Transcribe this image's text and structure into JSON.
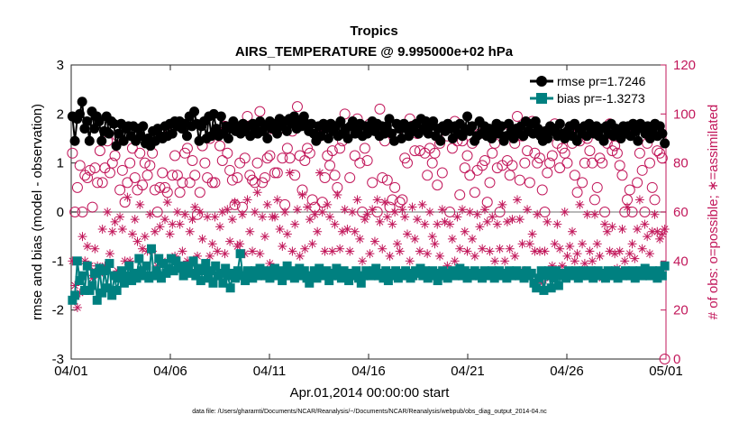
{
  "chart_data": {
    "type": "scatter",
    "title": "Tropics",
    "subtitle": "AIRS_TEMPERATURE @ 9.995000e+02 hPa",
    "xlabel": "Apr.01,2014 00:00:00 start",
    "ylabel_left": "rmse and bias (model - observation)",
    "ylabel_right": "# of obs: o=possible; ∗=assimilated",
    "footnote": "data file: /Users/gharamti/Documents/NCAR/Reanalysis/~/Documents/NCAR/Reanalysis/webpub/obs_diag_output_2014-04.nc",
    "x_ticks": [
      "04/01",
      "04/06",
      "04/11",
      "04/16",
      "04/21",
      "04/26",
      "05/01"
    ],
    "xlim_days": [
      0,
      30
    ],
    "ylim_left": [
      -3,
      3
    ],
    "yticks_left": [
      "3",
      "2",
      "1",
      "0",
      "-1",
      "-2",
      "-3"
    ],
    "ylim_right": [
      0,
      120
    ],
    "yticks_right": [
      "120",
      "100",
      "80",
      "60",
      "40",
      "20",
      "0"
    ],
    "legend": {
      "rmse": "rmse pr=1.7246",
      "bias": "bias pr=-1.3273"
    },
    "colors": {
      "rmse": "#000000",
      "bias": "#008080",
      "counts": "#c2185b",
      "zero_line": "#a0a0a0"
    },
    "series": [
      {
        "name": "rmse",
        "axis": "left",
        "values": [
          1.95,
          1.45,
          1.9,
          2.0,
          2.25,
          1.7,
          1.85,
          1.45,
          2.05,
          1.7,
          1.95,
          1.85,
          1.45,
          1.65,
          1.95,
          1.6,
          1.85,
          1.8,
          1.35,
          1.6,
          1.8,
          1.45,
          1.7,
          1.75,
          1.55,
          1.75,
          1.45,
          1.7,
          1.55,
          1.75,
          1.4,
          1.5,
          1.35,
          1.65,
          1.45,
          1.7,
          1.55,
          1.5,
          1.75,
          1.55,
          1.8,
          1.6,
          1.85,
          1.75,
          1.85,
          1.7,
          1.8,
          1.55,
          1.95,
          1.75,
          2.05,
          1.8,
          1.45,
          1.75,
          1.85,
          1.5,
          1.95,
          1.55,
          2.0,
          1.7,
          1.55,
          1.95,
          1.6,
          1.75,
          1.5,
          1.7,
          1.85,
          1.65,
          1.75,
          1.6,
          1.8,
          1.65,
          1.75,
          1.55,
          1.8,
          1.7,
          1.6,
          1.85,
          1.65,
          1.75,
          1.5,
          1.85,
          1.7,
          1.8,
          1.6,
          1.9,
          1.75,
          1.85,
          1.65,
          1.9,
          1.8,
          1.95,
          1.7,
          1.85,
          1.75,
          1.95,
          1.8,
          1.65,
          1.8,
          1.6,
          1.45,
          1.75,
          1.55,
          1.8,
          1.7,
          1.5,
          1.8,
          1.65,
          1.75,
          1.55,
          1.85,
          1.6,
          1.7,
          1.5,
          1.75,
          1.85,
          1.6,
          1.7,
          1.8,
          1.55,
          1.75,
          1.6,
          1.7,
          1.85,
          1.65,
          1.8,
          1.55,
          1.75,
          1.6,
          1.75,
          1.9,
          1.6,
          1.45,
          1.8,
          1.7,
          1.5,
          1.8,
          1.7,
          1.55,
          1.75,
          1.65,
          1.8,
          1.6,
          1.9,
          1.7,
          1.85,
          1.6,
          1.75,
          1.85,
          1.55,
          1.7,
          1.45,
          1.75,
          1.65,
          1.8,
          1.7,
          1.5,
          1.75,
          1.6,
          1.8,
          1.55,
          1.7,
          1.95,
          1.65,
          1.75,
          1.45,
          1.55,
          1.85,
          1.6,
          1.75,
          1.55,
          1.7,
          1.5,
          1.65,
          1.8,
          1.6,
          1.75,
          1.45,
          1.55,
          1.8,
          1.65,
          1.5,
          1.7,
          1.6,
          1.75,
          1.55,
          1.85,
          1.65,
          1.8,
          1.6,
          1.85,
          1.7,
          1.55,
          1.45,
          1.65,
          1.5,
          1.75,
          1.65,
          1.7,
          1.55,
          1.8,
          1.6,
          1.5,
          1.65,
          1.75,
          1.55,
          1.8,
          1.45,
          1.7,
          1.6,
          1.75,
          1.55,
          1.8,
          1.65,
          1.6,
          1.75,
          1.55,
          1.7,
          1.45,
          1.75,
          1.6,
          1.8,
          1.55,
          1.7,
          1.65,
          1.5,
          1.75,
          1.6,
          1.75,
          1.55,
          1.8,
          1.65,
          1.45,
          1.8,
          1.7,
          1.6,
          1.75,
          1.5,
          1.65,
          1.8,
          1.55,
          1.75,
          1.6,
          1.4
        ]
      },
      {
        "name": "bias",
        "axis": "left",
        "values": [
          -1.8,
          -1.7,
          -1.0,
          -1.4,
          -1.3,
          -1.6,
          -1.1,
          -1.6,
          -1.5,
          -1.25,
          -1.8,
          -1.15,
          -1.65,
          -1.2,
          -1.55,
          -1.05,
          -1.7,
          -1.3,
          -1.6,
          -1.35,
          -1.2,
          -1.45,
          -1.3,
          -1.1,
          -1.4,
          -1.25,
          -1.35,
          -0.95,
          -1.2,
          -1.3,
          -1.1,
          -1.35,
          -0.75,
          -1.3,
          -1.2,
          -0.95,
          -1.35,
          -1.05,
          -1.25,
          -1.15,
          -0.95,
          -1.2,
          -1.0,
          -1.15,
          -1.1,
          -1.3,
          -1.2,
          -1.1,
          -1.25,
          -1.0,
          -1.3,
          -1.15,
          -1.4,
          -1.2,
          -1.05,
          -1.35,
          -1.2,
          -1.45,
          -1.1,
          -1.3,
          -1.25,
          -1.45,
          -1.15,
          -1.3,
          -1.55,
          -1.25,
          -1.35,
          -1.2,
          -0.85,
          -1.3,
          -1.4,
          -1.2,
          -1.25,
          -1.35,
          -1.2,
          -1.3,
          -1.15,
          -1.25,
          -1.3,
          -1.2,
          -1.35,
          -1.25,
          -1.15,
          -1.3,
          -1.2,
          -1.4,
          -1.25,
          -1.1,
          -1.3,
          -1.2,
          -1.35,
          -1.25,
          -1.15,
          -1.3,
          -1.2,
          -1.35,
          -1.45,
          -1.3,
          -1.2,
          -1.35,
          -1.15,
          -1.3,
          -1.25,
          -1.2,
          -1.4,
          -1.3,
          -1.25,
          -1.15,
          -1.3,
          -1.35,
          -1.2,
          -1.25,
          -1.4,
          -1.3,
          -1.25,
          -1.2,
          -1.35,
          -1.45,
          -1.3,
          -1.2,
          -1.25,
          -1.3,
          -1.2,
          -1.15,
          -1.3,
          -1.25,
          -1.35,
          -1.2,
          -1.4,
          -1.3,
          -1.25,
          -1.2,
          -1.35,
          -1.25,
          -1.3,
          -1.2,
          -1.25,
          -1.35,
          -1.3,
          -1.2,
          -1.25,
          -1.15,
          -1.3,
          -1.2,
          -1.35,
          -1.25,
          -1.2,
          -1.3,
          -1.4,
          -1.25,
          -1.2,
          -1.3,
          -1.35,
          -1.25,
          -1.2,
          -1.3,
          -1.25,
          -1.15,
          -1.3,
          -1.2,
          -1.35,
          -1.25,
          -1.3,
          -1.2,
          -1.25,
          -1.3,
          -1.35,
          -1.2,
          -1.25,
          -1.3,
          -1.2,
          -1.35,
          -1.25,
          -1.2,
          -1.3,
          -1.25,
          -1.35,
          -1.2,
          -1.3,
          -1.25,
          -1.2,
          -1.3,
          -1.25,
          -1.35,
          -1.2,
          -1.3,
          -1.25,
          -1.45,
          -1.55,
          -1.35,
          -1.2,
          -1.6,
          -1.3,
          -1.2,
          -1.55,
          -1.35,
          -1.2,
          -1.5,
          -1.3,
          -1.25,
          -1.35,
          -1.2,
          -1.3,
          -1.25,
          -1.2,
          -1.35,
          -1.3,
          -1.2,
          -1.25,
          -1.3,
          -1.2,
          -1.35,
          -1.25,
          -1.2,
          -1.3,
          -1.25,
          -1.35,
          -1.2,
          -1.3,
          -1.25,
          -1.2,
          -1.35,
          -1.25,
          -1.3,
          -1.2,
          -1.25,
          -1.3,
          -1.2,
          -1.35,
          -1.25,
          -1.2,
          -1.3,
          -1.15,
          -1.25,
          -1.3,
          -1.2,
          -1.25,
          -1.35,
          -1.2,
          -1.3,
          -1.1
        ]
      },
      {
        "name": "possible",
        "axis": "right",
        "values": [
          84,
          60,
          70,
          79,
          60,
          75,
          74,
          77,
          62,
          78,
          72,
          85,
          72,
          78,
          89,
          76,
          80,
          83,
          91,
          69,
          77,
          64,
          72,
          80,
          86,
          74,
          69,
          84,
          71,
          80,
          75,
          79,
          84,
          69,
          60,
          70,
          76,
          70,
          68,
          92,
          75,
          83,
          75,
          68,
          72,
          84,
          86,
          72,
          81,
          75,
          59,
          68,
          87,
          80,
          74,
          90,
          72,
          72,
          93,
          87,
          81,
          95,
          84,
          77,
          73,
          63,
          74,
          80,
          62,
          82,
          99,
          75,
          73,
          72,
          80,
          101,
          72,
          74,
          82,
          83,
          94,
          76,
          76,
          94,
          82,
          63,
          86,
          82,
          93,
          75,
          103,
          83,
          69,
          81,
          86,
          84,
          65,
          62,
          92,
          91,
          64,
          74,
          83,
          79,
          85,
          75,
          70,
          86,
          89,
          100,
          93,
          74,
          93,
          83,
          98,
          80,
          60,
          86,
          81,
          96,
          72,
          94,
          60,
          102,
          74,
          89,
          73,
          62,
          65,
          70,
          91,
          64,
          65,
          82,
          80,
          98,
          95,
          85,
          92,
          85,
          97,
          84,
          75,
          86,
          80,
          84,
          71,
          88,
          76,
          94,
          91,
          60,
          86,
          97,
          89,
          67,
          89,
          78,
          83,
          75,
          88,
          68,
          77,
          92,
          79,
          81,
          64,
          72,
          84,
          88,
          78,
          60,
          79,
          92,
          81,
          75,
          79,
          88,
          99,
          73,
          91,
          80,
          85,
          72,
          97,
          84,
          80,
          82,
          69,
          60,
          76,
          80,
          83,
          96,
          88,
          78,
          86,
          84,
          80,
          94,
          88,
          75,
          68,
          89,
          72,
          80,
          90,
          85,
          80,
          65,
          70,
          82,
          80,
          60,
          88,
          96,
          85,
          87,
          84,
          79,
          75,
          60,
          65,
          69,
          60,
          94,
          72,
          84,
          77,
          60,
          88,
          80,
          70,
          65,
          85,
          84,
          82,
          0
        ]
      },
      {
        "name": "assimilated",
        "axis": "right",
        "values": [
          40,
          30,
          21,
          27,
          50,
          40,
          46,
          38,
          33,
          45,
          38,
          35,
          53,
          38,
          60,
          43,
          52,
          56,
          36,
          58,
          53,
          40,
          66,
          40,
          51,
          57,
          48,
          63,
          45,
          50,
          44,
          59,
          44,
          52,
          38,
          54,
          40,
          57,
          64,
          51,
          55,
          42,
          60,
          55,
          44,
          59,
          40,
          52,
          57,
          62,
          42,
          60,
          49,
          37,
          58,
          42,
          47,
          58,
          44,
          54,
          60,
          43,
          61,
          48,
          57,
          64,
          46,
          47,
          59,
          43,
          65,
          52,
          44,
          60,
          68,
          43,
          58,
          50,
          63,
          39,
          58,
          58,
          65,
          53,
          46,
          60,
          51,
          76,
          44,
          55,
          61,
          42,
          67,
          45,
          62,
          57,
          47,
          59,
          52,
          76,
          60,
          44,
          63,
          58,
          44,
          55,
          67,
          45,
          52,
          61,
          53,
          44,
          60,
          52,
          65,
          49,
          40,
          57,
          59,
          43,
          61,
          48,
          65,
          56,
          45,
          64,
          58,
          42,
          55,
          60,
          47,
          44,
          61,
          58,
          51,
          40,
          62,
          49,
          57,
          44,
          63,
          55,
          43,
          60,
          50,
          47,
          55,
          42,
          61,
          56,
          38,
          55,
          49,
          40,
          58,
          45,
          61,
          52,
          44,
          60,
          49,
          42,
          59,
          54,
          45,
          61,
          56,
          44,
          58,
          40,
          55,
          45,
          63,
          40,
          56,
          45,
          57,
          42,
          65,
          57,
          47,
          36,
          61,
          47,
          51,
          44,
          59,
          44,
          31,
          44,
          56,
          33,
          38,
          47,
          55,
          45,
          38,
          60,
          42,
          46,
          52,
          40,
          43,
          63,
          47,
          39,
          59,
          44,
          40,
          59,
          47,
          42,
          33,
          55,
          52,
          44,
          54,
          43,
          37,
          44,
          53,
          40,
          62,
          43,
          47,
          41,
          53,
          65,
          45,
          55,
          50,
          43,
          52,
          59,
          52,
          49,
          51,
          53
        ]
      }
    ]
  }
}
